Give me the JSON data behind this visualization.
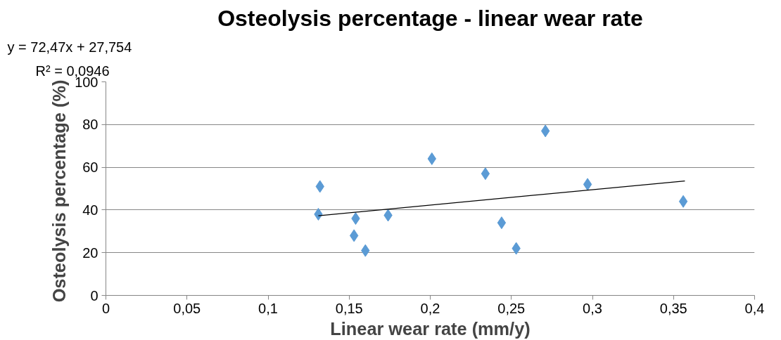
{
  "chart_data": {
    "type": "scatter",
    "title": "Osteolysis percentage - linear wear rate",
    "xlabel": "Linear wear rate (mm/y)",
    "ylabel": "Osteolysis percentage  (%)",
    "annotations": [
      "y = 72,47x + 27,754",
      "R² = 0,0946"
    ],
    "series": [
      {
        "color": "#5b9bd5",
        "marker": "diamond",
        "x": [
          0.131,
          0.132,
          0.154,
          0.153,
          0.16,
          0.174,
          0.201,
          0.234,
          0.244,
          0.253,
          0.271,
          0.297,
          0.356
        ],
        "values": [
          38,
          51,
          36,
          28,
          21,
          37.5,
          64,
          57,
          34,
          22,
          77,
          52,
          44
        ]
      },
      {
        "type": "line",
        "color": "#000000",
        "marker": "none",
        "x": [
          0.131,
          0.357
        ],
        "values": [
          37.3,
          53.6
        ]
      }
    ],
    "xlim": [
      0,
      0.4
    ],
    "ylim": [
      0,
      100
    ],
    "xticks": [
      0,
      {
        "value": 0.05,
        "label": "0,05"
      },
      {
        "value": 0.1,
        "label": "0,1"
      },
      {
        "value": 0.15,
        "label": "0,15"
      },
      {
        "value": 0.2,
        "label": "0,2"
      },
      {
        "value": 0.25,
        "label": "0,25"
      },
      {
        "value": 0.3,
        "label": "0,3"
      },
      {
        "value": 0.35,
        "label": "0,35"
      },
      {
        "value": 0.4,
        "label": "0,4"
      }
    ],
    "yticks": [
      0,
      20,
      40,
      60,
      80,
      100
    ],
    "grid": "y"
  }
}
